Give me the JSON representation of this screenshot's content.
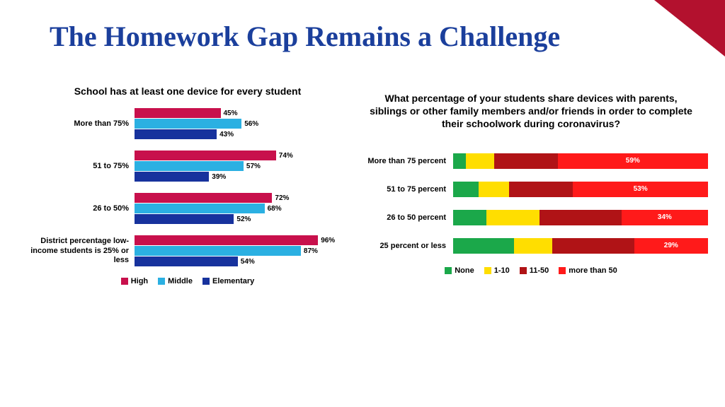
{
  "title": "The Homework Gap Remains a Challenge",
  "colors": {
    "title": "#1b3f9c",
    "corner": "#b3112e",
    "high": "#c8104c",
    "middle": "#2bb0e2",
    "elementary": "#17329d",
    "none": "#1ba84a",
    "r1_10": "#ffde00",
    "r11_50": "#b01316",
    "r50plus": "#ff1a1a"
  },
  "left_chart": {
    "title": "School has at least one device for every student",
    "max": 100,
    "categories": [
      {
        "label": "More than 75%",
        "high": 45,
        "middle": 56,
        "elementary": 43
      },
      {
        "label": "51 to 75%",
        "high": 74,
        "middle": 57,
        "elementary": 39
      },
      {
        "label": "26 to 50%",
        "high": 72,
        "middle": 68,
        "elementary": 52
      },
      {
        "label": "District percentage low-income students is 25% or less",
        "high": 96,
        "middle": 87,
        "elementary": 54
      }
    ],
    "legend": [
      {
        "label": "High",
        "color_key": "high"
      },
      {
        "label": "Middle",
        "color_key": "middle"
      },
      {
        "label": "Elementary",
        "color_key": "elementary"
      }
    ]
  },
  "right_chart": {
    "title": "What percentage of your students share devices with parents, siblings or other family members and/or friends in order to complete their schoolwork during coronavirus?",
    "categories": [
      {
        "label": "More than 75 percent",
        "none": 5,
        "r1_10": 11,
        "r11_50": 25,
        "r50plus": 59,
        "show": "59%"
      },
      {
        "label": "51 to 75 percent",
        "none": 10,
        "r1_10": 12,
        "r11_50": 25,
        "r50plus": 53,
        "show": "53%"
      },
      {
        "label": "26 to 50 percent",
        "none": 13,
        "r1_10": 21,
        "r11_50": 32,
        "r50plus": 34,
        "show": "34%"
      },
      {
        "label": "25 percent or less",
        "none": 24,
        "r1_10": 15,
        "r11_50": 32,
        "r50plus": 29,
        "show": "29%"
      }
    ],
    "legend": [
      {
        "label": "None",
        "color_key": "none"
      },
      {
        "label": "1-10",
        "color_key": "r1_10"
      },
      {
        "label": "11-50",
        "color_key": "r11_50"
      },
      {
        "label": "more than 50",
        "color_key": "r50plus"
      }
    ]
  }
}
